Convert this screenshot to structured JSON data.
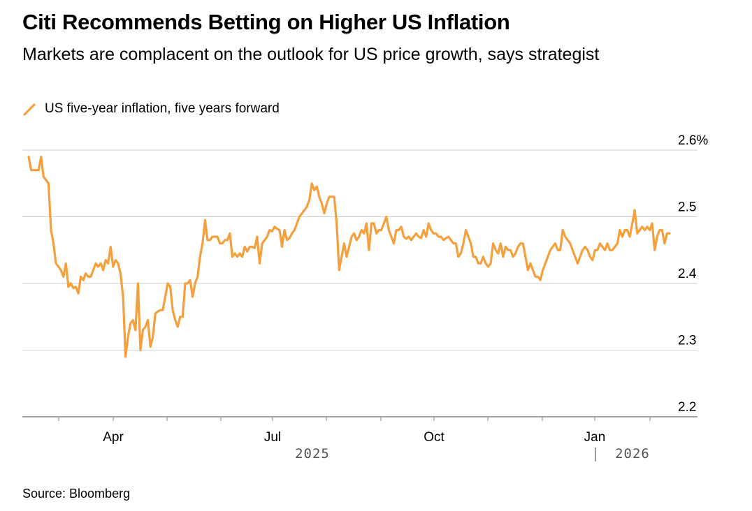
{
  "chart_data": {
    "type": "line",
    "title": "Citi Recommends Betting on Higher US Inflation",
    "subtitle": "Markets are complacent on the outlook for US price growth, says strategist",
    "source": "Source: Bloomberg",
    "series": [
      {
        "name": "US five-year inflation, five years forward",
        "color": "#f5a03c",
        "values": [
          2.59,
          2.57,
          2.57,
          2.57,
          2.57,
          2.59,
          2.56,
          2.555,
          2.55,
          2.48,
          2.46,
          2.43,
          2.425,
          2.42,
          2.41,
          2.43,
          2.395,
          2.4,
          2.393,
          2.395,
          2.385,
          2.41,
          2.405,
          2.415,
          2.41,
          2.41,
          2.42,
          2.43,
          2.425,
          2.43,
          2.42,
          2.435,
          2.43,
          2.455,
          2.425,
          2.435,
          2.43,
          2.415,
          2.38,
          2.29,
          2.32,
          2.34,
          2.345,
          2.33,
          2.4,
          2.3,
          2.33,
          2.335,
          2.345,
          2.305,
          2.32,
          2.355,
          2.358,
          2.36,
          2.36,
          2.38,
          2.4,
          2.395,
          2.36,
          2.345,
          2.335,
          2.35,
          2.35,
          2.4,
          2.4,
          2.405,
          2.38,
          2.4,
          2.41,
          2.44,
          2.46,
          2.495,
          2.465,
          2.465,
          2.47,
          2.47,
          2.47,
          2.46,
          2.46,
          2.465,
          2.465,
          2.475,
          2.44,
          2.445,
          2.44,
          2.445,
          2.44,
          2.455,
          2.448,
          2.455,
          2.455,
          2.453,
          2.47,
          2.43,
          2.46,
          2.465,
          2.47,
          2.48,
          2.478,
          2.485,
          2.482,
          2.48,
          2.455,
          2.48,
          2.465,
          2.468,
          2.475,
          2.48,
          2.49,
          2.5,
          2.505,
          2.51,
          2.515,
          2.525,
          2.55,
          2.54,
          2.545,
          2.53,
          2.52,
          2.505,
          2.52,
          2.53,
          2.53,
          2.53,
          2.49,
          2.42,
          2.44,
          2.46,
          2.44,
          2.455,
          2.47,
          2.475,
          2.465,
          2.47,
          2.48,
          2.475,
          2.49,
          2.45,
          2.49,
          2.49,
          2.475,
          2.48,
          2.48,
          2.49,
          2.5,
          2.48,
          2.47,
          2.46,
          2.48,
          2.48,
          2.485,
          2.47,
          2.467,
          2.47,
          2.465,
          2.47,
          2.475,
          2.47,
          2.468,
          2.48,
          2.47,
          2.49,
          2.48,
          2.475,
          2.475,
          2.47,
          2.47,
          2.465,
          2.468,
          2.47,
          2.465,
          2.46,
          2.46,
          2.44,
          2.445,
          2.46,
          2.48,
          2.47,
          2.46,
          2.44,
          2.44,
          2.43,
          2.43,
          2.44,
          2.43,
          2.425,
          2.43,
          2.46,
          2.45,
          2.445,
          2.46,
          2.44,
          2.455,
          2.45,
          2.45,
          2.44,
          2.445,
          2.455,
          2.46,
          2.46,
          2.44,
          2.42,
          2.43,
          2.42,
          2.41,
          2.41,
          2.405,
          2.42,
          2.43,
          2.44,
          2.45,
          2.455,
          2.46,
          2.45,
          2.45,
          2.48,
          2.47,
          2.465,
          2.46,
          2.45,
          2.44,
          2.43,
          2.44,
          2.45,
          2.455,
          2.45,
          2.44,
          2.435,
          2.45,
          2.45,
          2.46,
          2.455,
          2.45,
          2.46,
          2.45,
          2.45,
          2.455,
          2.46,
          2.48,
          2.47,
          2.48,
          2.48,
          2.47,
          2.49,
          2.51,
          2.475,
          2.48,
          2.485,
          2.48,
          2.485,
          2.48,
          2.49,
          2.45,
          2.47,
          2.48,
          2.48,
          2.46,
          2.475,
          2.475
        ]
      }
    ],
    "y_ticks": [
      2.2,
      2.3,
      2.4,
      2.5,
      2.6
    ],
    "y_tick_labels": [
      "2.2",
      "2.3",
      "2.4",
      "2.5",
      "2.6%"
    ],
    "ylim": [
      2.2,
      2.6
    ],
    "x_month_labels": [
      "Apr",
      "Jul",
      "Oct",
      "Jan"
    ],
    "x_year_labels": [
      "2025",
      "2026"
    ],
    "grid": true,
    "legend_position": "top-left"
  }
}
